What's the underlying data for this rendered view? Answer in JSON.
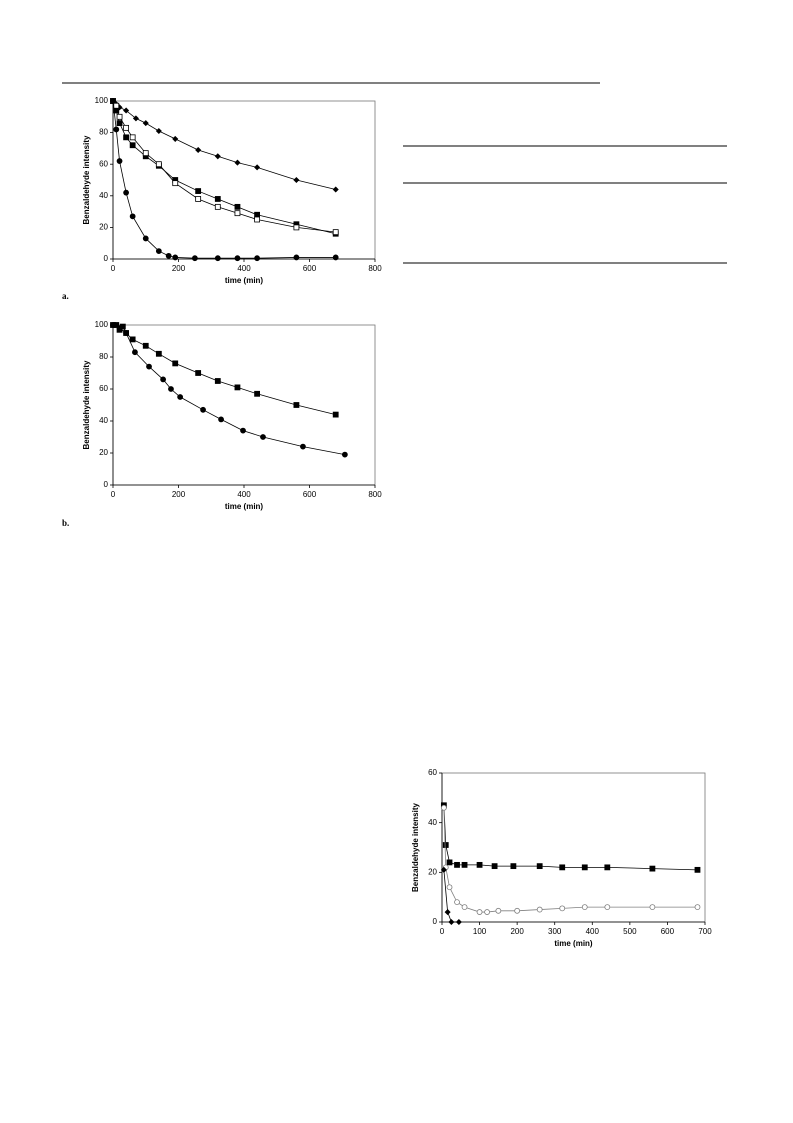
{
  "chart_data": [
    {
      "type": "line",
      "label": "a.",
      "x_label": "time (min)",
      "y_label": "Benzaldehyde intensity",
      "xlim": [
        0,
        800
      ],
      "ylim": [
        0,
        100
      ],
      "xticks": [
        0,
        200,
        400,
        600,
        800
      ],
      "yticks": [
        0,
        20,
        40,
        60,
        80,
        100
      ],
      "series": [
        {
          "color": "#000000",
          "marker": "diamond",
          "filled": true,
          "x": [
            0,
            10,
            20,
            40,
            70,
            100,
            140,
            190,
            260,
            320,
            380,
            440,
            560,
            680
          ],
          "values": [
            100,
            98,
            96,
            94,
            89,
            86,
            81,
            76,
            69,
            65,
            61,
            58,
            50,
            44
          ]
        },
        {
          "color": "#000000",
          "marker": "square",
          "filled": true,
          "x": [
            0,
            10,
            20,
            40,
            60,
            100,
            140,
            190,
            260,
            320,
            380,
            440,
            560,
            680
          ],
          "values": [
            100,
            94,
            86,
            77,
            72,
            65,
            59,
            50,
            43,
            38,
            33,
            28,
            22,
            16
          ]
        },
        {
          "color": "#000000",
          "marker": "square",
          "filled": false,
          "x": [
            0,
            10,
            20,
            40,
            60,
            100,
            140,
            190,
            260,
            320,
            380,
            440,
            560,
            680
          ],
          "values": [
            100,
            97,
            90,
            83,
            77,
            67,
            60,
            48,
            38,
            33,
            29,
            25,
            20,
            17
          ]
        },
        {
          "color": "#000000",
          "marker": "circle",
          "filled": true,
          "x": [
            0,
            10,
            20,
            40,
            60,
            100,
            140,
            170,
            190,
            250,
            320,
            380,
            440,
            560,
            680
          ],
          "values": [
            100,
            82,
            62,
            42,
            27,
            13,
            5,
            2,
            1,
            0.5,
            0.5,
            0.5,
            0.5,
            1,
            1
          ]
        }
      ]
    },
    {
      "type": "line",
      "label": "b.",
      "x_label": "time (min)",
      "y_label": "Benzaldehyde intensity",
      "xlim": [
        0,
        800
      ],
      "ylim": [
        0,
        100
      ],
      "xticks": [
        0,
        200,
        400,
        600,
        800
      ],
      "yticks": [
        0,
        20,
        40,
        60,
        80,
        100
      ],
      "series": [
        {
          "color": "#000000",
          "marker": "square",
          "filled": true,
          "x": [
            0,
            10,
            20,
            30,
            40,
            60,
            100,
            140,
            190,
            260,
            320,
            380,
            440,
            560,
            680
          ],
          "values": [
            100,
            100,
            97,
            99,
            95,
            91,
            87,
            82,
            76,
            70,
            65,
            61,
            57,
            50,
            44
          ]
        },
        {
          "color": "#000000",
          "marker": "circle",
          "filled": true,
          "x": [
            0,
            20,
            40,
            67,
            110,
            153,
            177,
            205,
            275,
            330,
            397,
            458,
            580,
            708
          ],
          "values": [
            100,
            98,
            95,
            83,
            74,
            66,
            60,
            55,
            47,
            41,
            34,
            30,
            24,
            19
          ]
        }
      ]
    },
    {
      "type": "line",
      "x_label": "time (min)",
      "y_label": "Benzaldehyde intensity",
      "xlim": [
        0,
        700
      ],
      "ylim": [
        0,
        60
      ],
      "xticks": [
        0,
        100,
        200,
        300,
        400,
        500,
        600,
        700
      ],
      "yticks": [
        0,
        20,
        40,
        60
      ],
      "series": [
        {
          "color": "#000000",
          "marker": "square",
          "filled": true,
          "x": [
            5,
            10,
            20,
            40,
            60,
            100,
            140,
            190,
            260,
            320,
            380,
            440,
            560,
            680
          ],
          "values": [
            47,
            31,
            24,
            23,
            23,
            23,
            22.5,
            22.5,
            22.5,
            22,
            22,
            22,
            21.5,
            21
          ]
        },
        {
          "color": "#808080",
          "marker": "circle",
          "filled": false,
          "x": [
            5,
            10,
            20,
            40,
            60,
            100,
            120,
            150,
            200,
            260,
            320,
            380,
            440,
            560,
            680
          ],
          "values": [
            46,
            22,
            14,
            8,
            6,
            4,
            4,
            4.5,
            4.5,
            5,
            5.5,
            6,
            6,
            6,
            6
          ]
        },
        {
          "color": "#000000",
          "marker": "diamond",
          "filled": true,
          "x": [
            5,
            15,
            25,
            45
          ],
          "values": [
            21,
            4,
            0,
            0
          ]
        }
      ]
    }
  ]
}
